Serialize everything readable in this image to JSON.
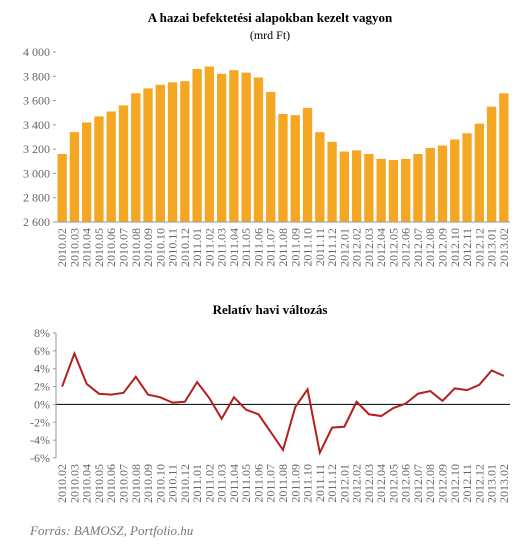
{
  "chart_data": [
    {
      "type": "bar",
      "title": "A hazai befektetési  alapokban kezelt vagyon",
      "subtitle": "(mrd Ft)",
      "categories": [
        "2010.02",
        "2010.03",
        "2010.04",
        "2010.05",
        "2010.06",
        "2010.07",
        "2010.08",
        "2010.09",
        "2010.10",
        "2010.11",
        "2010.12",
        "2011.01",
        "2011.02",
        "2011.03",
        "2011.04",
        "2011.05",
        "2011.06",
        "2011.07",
        "2011.08",
        "2011.09",
        "2011.10",
        "2011.11",
        "2011.12",
        "2012.01",
        "2012.02",
        "2012.03",
        "2012.04",
        "2012.05",
        "2012.06",
        "2012.07",
        "2012.08",
        "2012.09",
        "2012.10",
        "2012.11",
        "2012.12",
        "2013.01",
        "2013.02"
      ],
      "values": [
        3160,
        3340,
        3420,
        3470,
        3510,
        3560,
        3660,
        3700,
        3730,
        3750,
        3760,
        3860,
        3880,
        3820,
        3850,
        3830,
        3790,
        3670,
        3490,
        3480,
        3540,
        3340,
        3260,
        3180,
        3190,
        3160,
        3120,
        3110,
        3120,
        3160,
        3210,
        3230,
        3280,
        3330,
        3410,
        3550,
        3660
      ],
      "color": "#f5a623",
      "ylim": [
        2600,
        4000
      ],
      "yticks": [
        {
          "value": 2600,
          "label": "2 600"
        },
        {
          "value": 2800,
          "label": "2 800"
        },
        {
          "value": 3000,
          "label": "3 000"
        },
        {
          "value": 3200,
          "label": "3 200"
        },
        {
          "value": 3400,
          "label": "3 400"
        },
        {
          "value": 3600,
          "label": "3 600"
        },
        {
          "value": 3800,
          "label": "3 800"
        },
        {
          "value": 4000,
          "label": "4 000"
        }
      ]
    },
    {
      "type": "line",
      "title": "Relatív havi változás",
      "categories": [
        "2010.02",
        "2010.03",
        "2010.04",
        "2010.05",
        "2010.06",
        "2010.07",
        "2010.08",
        "2010.09",
        "2010.10",
        "2010.11",
        "2010.12",
        "2011.01",
        "2011.02",
        "2011.03",
        "2011.04",
        "2011.05",
        "2011.06",
        "2011.07",
        "2011.08",
        "2011.09",
        "2011.10",
        "2011.11",
        "2011.12",
        "2012.01",
        "2012.02",
        "2012.03",
        "2012.04",
        "2012.05",
        "2012.06",
        "2012.07",
        "2012.08",
        "2012.09",
        "2012.10",
        "2012.11",
        "2012.12",
        "2013.01",
        "2013.02"
      ],
      "values": [
        2.0,
        5.7,
        2.3,
        1.2,
        1.1,
        1.3,
        3.1,
        1.1,
        0.8,
        0.2,
        0.3,
        2.5,
        0.7,
        -1.6,
        0.8,
        -0.6,
        -1.1,
        -3.1,
        -5.1,
        -0.3,
        1.7,
        -5.4,
        -2.6,
        -2.5,
        0.3,
        -1.1,
        -1.3,
        -0.4,
        0.1,
        1.2,
        1.5,
        0.4,
        1.8,
        1.6,
        2.2,
        3.8,
        3.2
      ],
      "color": "#b41f1f",
      "ylim": [
        -6,
        8
      ],
      "yticks": [
        {
          "value": -6,
          "label": "-6%"
        },
        {
          "value": -4,
          "label": "-4%"
        },
        {
          "value": -2,
          "label": "-2%"
        },
        {
          "value": 0,
          "label": "0%"
        },
        {
          "value": 2,
          "label": "2%"
        },
        {
          "value": 4,
          "label": "4%"
        },
        {
          "value": 6,
          "label": "6%"
        },
        {
          "value": 8,
          "label": "8%"
        }
      ]
    }
  ],
  "source": "Forrás: BAMOSZ, Portfolio.hu"
}
